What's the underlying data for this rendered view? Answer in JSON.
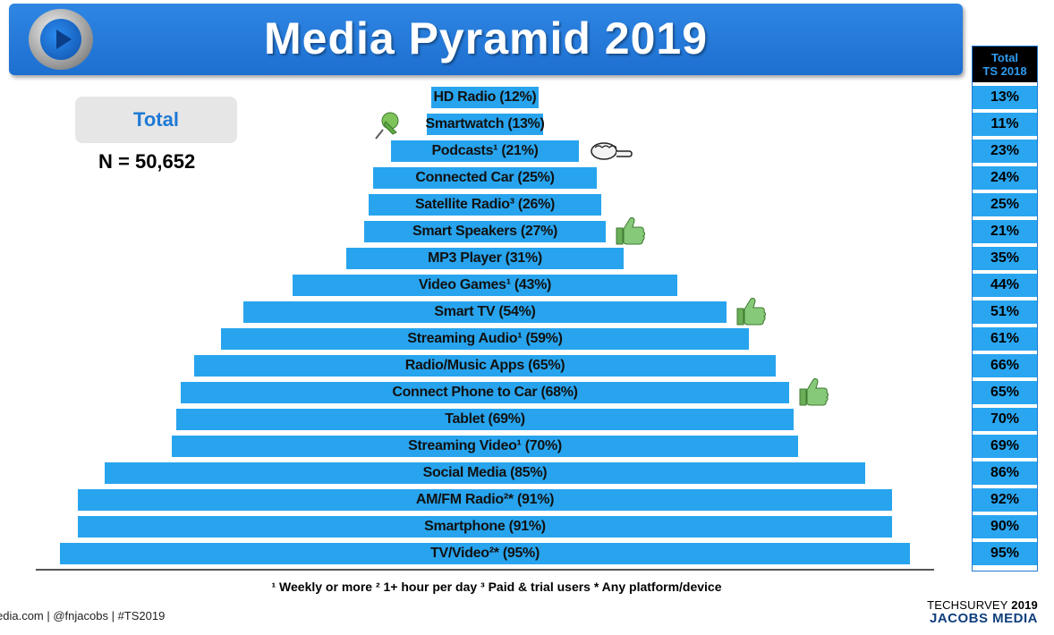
{
  "header": {
    "title": "Media Pyramid 2019"
  },
  "total_box": {
    "label": "Total",
    "n": "N = 50,652"
  },
  "side_table": {
    "header_line1": "Total",
    "header_line2": "TS 2018",
    "values": [
      "13%",
      "11%",
      "23%",
      "24%",
      "25%",
      "21%",
      "35%",
      "44%",
      "51%",
      "61%",
      "66%",
      "65%",
      "70%",
      "69%",
      "86%",
      "92%",
      "90%",
      "95%"
    ]
  },
  "footnote": "¹ Weekly or more  ² 1+ hour per day  ³ Paid & trial users  * Any platform/device",
  "footer": {
    "left": "edia.com  |  @fnjacobs  |  #TS2019",
    "brand_top": "TECHSURVEY ",
    "brand_year": "2019",
    "brand_bottom": "JACOBS MEDIA"
  },
  "chart_data": {
    "type": "bar",
    "orientation": "horizontal-centered-pyramid",
    "title": "Media Pyramid 2019",
    "categories": [
      "HD Radio",
      "Smartwatch",
      "Podcasts¹",
      "Connected Car",
      "Satellite Radio³",
      "Smart Speakers",
      "MP3 Player",
      "Video Games¹",
      "Smart TV",
      "Streaming Audio¹",
      "Radio/Music Apps",
      "Connect Phone to Car",
      "Tablet",
      "Streaming Video¹",
      "Social Media",
      "AM/FM Radio²*",
      "Smartphone",
      "TV/Video²*"
    ],
    "labels": [
      "HD Radio (12%)",
      "Smartwatch (13%)",
      "Podcasts¹ (21%)",
      "Connected Car (25%)",
      "Satellite Radio³ (26%)",
      "Smart Speakers (27%)",
      "MP3 Player (31%)",
      "Video Games¹ (43%)",
      "Smart TV (54%)",
      "Streaming Audio¹ (59%)",
      "Radio/Music Apps (65%)",
      "Connect Phone to Car (68%)",
      "Tablet (69%)",
      "Streaming Video¹ (70%)",
      "Social Media (85%)",
      "AM/FM Radio²* (91%)",
      "Smartphone (91%)",
      "TV/Video²* (95%)"
    ],
    "values": [
      12,
      13,
      21,
      25,
      26,
      27,
      31,
      43,
      54,
      59,
      65,
      68,
      69,
      70,
      85,
      91,
      91,
      95
    ],
    "value_unit": "%",
    "ylim": [
      0,
      100
    ],
    "grid": false,
    "annotations": [
      {
        "row": "Smartwatch",
        "icon": "pushpin-icon"
      },
      {
        "row": "Podcasts¹",
        "icon": "fist-bump-icon"
      },
      {
        "row": "Smart Speakers",
        "icon": "thumbs-up-icon"
      },
      {
        "row": "Smart TV",
        "icon": "thumbs-up-icon"
      },
      {
        "row": "Connect Phone to Car",
        "icon": "thumbs-up-icon"
      }
    ]
  },
  "colors": {
    "bar": "#28a4ee",
    "header": "#1d6fd0",
    "accent_text": "#1f7ad6",
    "thumbs": "#7cc46a"
  }
}
